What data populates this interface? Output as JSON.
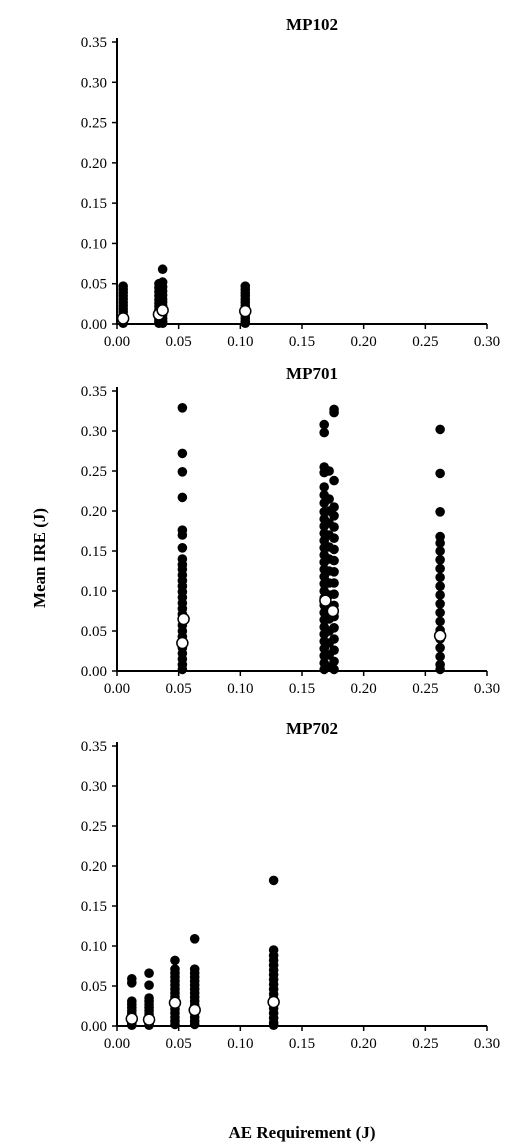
{
  "figure": {
    "ylabel": "Mean IRE (J)",
    "xlabel": "AE Requirement (J)"
  },
  "colors": {
    "individual": "#000000",
    "mean_fill": "#ffffff",
    "mean_stroke": "#000000"
  },
  "chart_data": [
    {
      "type": "scatter",
      "title": "MP102",
      "xlim": [
        0,
        0.3
      ],
      "ylim": [
        0,
        0.35
      ],
      "xticks": [
        "0.00",
        "0.05",
        "0.10",
        "0.15",
        "0.20",
        "0.25",
        "0.30"
      ],
      "yticks": [
        "0.00",
        "0.05",
        "0.10",
        "0.15",
        "0.20",
        "0.25",
        "0.30",
        "0.35"
      ],
      "series": [
        {
          "role": "individual",
          "points": [
            [
              0.005,
              0.047
            ],
            [
              0.005,
              0.043
            ],
            [
              0.005,
              0.039
            ],
            [
              0.005,
              0.035
            ],
            [
              0.005,
              0.031
            ],
            [
              0.005,
              0.027
            ],
            [
              0.005,
              0.023
            ],
            [
              0.005,
              0.019
            ],
            [
              0.005,
              0.015
            ],
            [
              0.005,
              0.011
            ],
            [
              0.005,
              0.007
            ],
            [
              0.005,
              0.004
            ],
            [
              0.005,
              0.001
            ],
            [
              0.034,
              0.05
            ],
            [
              0.034,
              0.045
            ],
            [
              0.034,
              0.04
            ],
            [
              0.034,
              0.035
            ],
            [
              0.034,
              0.03
            ],
            [
              0.034,
              0.026
            ],
            [
              0.034,
              0.022
            ],
            [
              0.034,
              0.018
            ],
            [
              0.034,
              0.014
            ],
            [
              0.034,
              0.01
            ],
            [
              0.034,
              0.006
            ],
            [
              0.034,
              0.003
            ],
            [
              0.034,
              0.001
            ],
            [
              0.037,
              0.068
            ],
            [
              0.037,
              0.052
            ],
            [
              0.037,
              0.046
            ],
            [
              0.037,
              0.041
            ],
            [
              0.037,
              0.036
            ],
            [
              0.037,
              0.031
            ],
            [
              0.037,
              0.027
            ],
            [
              0.037,
              0.023
            ],
            [
              0.037,
              0.019
            ],
            [
              0.037,
              0.015
            ],
            [
              0.037,
              0.011
            ],
            [
              0.037,
              0.007
            ],
            [
              0.037,
              0.003
            ],
            [
              0.037,
              0.001
            ],
            [
              0.104,
              0.047
            ],
            [
              0.104,
              0.043
            ],
            [
              0.104,
              0.039
            ],
            [
              0.104,
              0.035
            ],
            [
              0.104,
              0.031
            ],
            [
              0.104,
              0.027
            ],
            [
              0.104,
              0.023
            ],
            [
              0.104,
              0.019
            ],
            [
              0.104,
              0.015
            ],
            [
              0.104,
              0.011
            ],
            [
              0.104,
              0.007
            ],
            [
              0.104,
              0.003
            ],
            [
              0.104,
              0.001
            ]
          ]
        },
        {
          "role": "mean",
          "points": [
            [
              0.005,
              0.007
            ],
            [
              0.034,
              0.012
            ],
            [
              0.037,
              0.017
            ],
            [
              0.104,
              0.016
            ]
          ]
        }
      ]
    },
    {
      "type": "scatter",
      "title": "MP701",
      "xlim": [
        0,
        0.3
      ],
      "ylim": [
        0,
        0.35
      ],
      "xticks": [
        "0.00",
        "0.05",
        "0.10",
        "0.15",
        "0.20",
        "0.25",
        "0.30"
      ],
      "yticks": [
        "0.00",
        "0.05",
        "0.10",
        "0.15",
        "0.20",
        "0.25",
        "0.30",
        "0.35"
      ],
      "series": [
        {
          "role": "individual",
          "points": [
            [
              0.053,
              0.329
            ],
            [
              0.053,
              0.272
            ],
            [
              0.053,
              0.249
            ],
            [
              0.053,
              0.217
            ],
            [
              0.053,
              0.176
            ],
            [
              0.053,
              0.17
            ],
            [
              0.053,
              0.154
            ],
            [
              0.053,
              0.14
            ],
            [
              0.053,
              0.133
            ],
            [
              0.053,
              0.127
            ],
            [
              0.053,
              0.12
            ],
            [
              0.053,
              0.113
            ],
            [
              0.053,
              0.106
            ],
            [
              0.053,
              0.099
            ],
            [
              0.053,
              0.092
            ],
            [
              0.053,
              0.085
            ],
            [
              0.053,
              0.078
            ],
            [
              0.053,
              0.071
            ],
            [
              0.053,
              0.064
            ],
            [
              0.053,
              0.057
            ],
            [
              0.053,
              0.05
            ],
            [
              0.053,
              0.043
            ],
            [
              0.053,
              0.036
            ],
            [
              0.053,
              0.029
            ],
            [
              0.053,
              0.022
            ],
            [
              0.053,
              0.015
            ],
            [
              0.053,
              0.008
            ],
            [
              0.053,
              0.002
            ],
            [
              0.168,
              0.308
            ],
            [
              0.168,
              0.298
            ],
            [
              0.168,
              0.255
            ],
            [
              0.168,
              0.248
            ],
            [
              0.168,
              0.23
            ],
            [
              0.168,
              0.22
            ],
            [
              0.168,
              0.21
            ],
            [
              0.168,
              0.199
            ],
            [
              0.168,
              0.19
            ],
            [
              0.168,
              0.181
            ],
            [
              0.168,
              0.172
            ],
            [
              0.168,
              0.163
            ],
            [
              0.168,
              0.154
            ],
            [
              0.168,
              0.145
            ],
            [
              0.168,
              0.136
            ],
            [
              0.168,
              0.127
            ],
            [
              0.168,
              0.118
            ],
            [
              0.168,
              0.109
            ],
            [
              0.168,
              0.1
            ],
            [
              0.168,
              0.091
            ],
            [
              0.168,
              0.082
            ],
            [
              0.168,
              0.073
            ],
            [
              0.168,
              0.064
            ],
            [
              0.168,
              0.055
            ],
            [
              0.168,
              0.046
            ],
            [
              0.168,
              0.037
            ],
            [
              0.168,
              0.028
            ],
            [
              0.168,
              0.019
            ],
            [
              0.168,
              0.01
            ],
            [
              0.168,
              0.002
            ],
            [
              0.172,
              0.25
            ],
            [
              0.172,
              0.215
            ],
            [
              0.172,
              0.2
            ],
            [
              0.172,
              0.185
            ],
            [
              0.172,
              0.17
            ],
            [
              0.172,
              0.155
            ],
            [
              0.172,
              0.14
            ],
            [
              0.172,
              0.125
            ],
            [
              0.172,
              0.11
            ],
            [
              0.172,
              0.095
            ],
            [
              0.172,
              0.08
            ],
            [
              0.172,
              0.065
            ],
            [
              0.172,
              0.05
            ],
            [
              0.172,
              0.035
            ],
            [
              0.172,
              0.02
            ],
            [
              0.172,
              0.005
            ],
            [
              0.176,
              0.327
            ],
            [
              0.176,
              0.323
            ],
            [
              0.176,
              0.238
            ],
            [
              0.176,
              0.205
            ],
            [
              0.176,
              0.194
            ],
            [
              0.176,
              0.18
            ],
            [
              0.176,
              0.166
            ],
            [
              0.176,
              0.152
            ],
            [
              0.176,
              0.138
            ],
            [
              0.176,
              0.124
            ],
            [
              0.176,
              0.11
            ],
            [
              0.176,
              0.096
            ],
            [
              0.176,
              0.082
            ],
            [
              0.176,
              0.068
            ],
            [
              0.176,
              0.054
            ],
            [
              0.176,
              0.04
            ],
            [
              0.176,
              0.026
            ],
            [
              0.176,
              0.012
            ],
            [
              0.176,
              0.002
            ],
            [
              0.262,
              0.302
            ],
            [
              0.262,
              0.247
            ],
            [
              0.262,
              0.199
            ],
            [
              0.262,
              0.168
            ],
            [
              0.262,
              0.16
            ],
            [
              0.262,
              0.15
            ],
            [
              0.262,
              0.139
            ],
            [
              0.262,
              0.128
            ],
            [
              0.262,
              0.117
            ],
            [
              0.262,
              0.106
            ],
            [
              0.262,
              0.095
            ],
            [
              0.262,
              0.084
            ],
            [
              0.262,
              0.073
            ],
            [
              0.262,
              0.062
            ],
            [
              0.262,
              0.051
            ],
            [
              0.262,
              0.04
            ],
            [
              0.262,
              0.029
            ],
            [
              0.262,
              0.018
            ],
            [
              0.262,
              0.008
            ],
            [
              0.262,
              0.002
            ]
          ]
        },
        {
          "role": "mean",
          "points": [
            [
              0.053,
              0.035
            ],
            [
              0.054,
              0.065
            ],
            [
              0.169,
              0.088
            ],
            [
              0.175,
              0.075
            ],
            [
              0.262,
              0.044
            ]
          ]
        }
      ]
    },
    {
      "type": "scatter",
      "title": "MP702",
      "xlim": [
        0,
        0.3
      ],
      "ylim": [
        0,
        0.35
      ],
      "xticks": [
        "0.00",
        "0.05",
        "0.10",
        "0.15",
        "0.20",
        "0.25",
        "0.30"
      ],
      "yticks": [
        "0.00",
        "0.05",
        "0.10",
        "0.15",
        "0.20",
        "0.25",
        "0.30",
        "0.35"
      ],
      "series": [
        {
          "role": "individual",
          "points": [
            [
              0.012,
              0.059
            ],
            [
              0.012,
              0.054
            ],
            [
              0.012,
              0.031
            ],
            [
              0.012,
              0.027
            ],
            [
              0.012,
              0.023
            ],
            [
              0.012,
              0.019
            ],
            [
              0.012,
              0.015
            ],
            [
              0.012,
              0.011
            ],
            [
              0.012,
              0.007
            ],
            [
              0.012,
              0.003
            ],
            [
              0.012,
              0.001
            ],
            [
              0.026,
              0.066
            ],
            [
              0.026,
              0.051
            ],
            [
              0.026,
              0.035
            ],
            [
              0.026,
              0.031
            ],
            [
              0.026,
              0.027
            ],
            [
              0.026,
              0.023
            ],
            [
              0.026,
              0.019
            ],
            [
              0.026,
              0.015
            ],
            [
              0.026,
              0.011
            ],
            [
              0.026,
              0.007
            ],
            [
              0.026,
              0.003
            ],
            [
              0.026,
              0.001
            ],
            [
              0.047,
              0.082
            ],
            [
              0.047,
              0.071
            ],
            [
              0.047,
              0.066
            ],
            [
              0.047,
              0.061
            ],
            [
              0.047,
              0.056
            ],
            [
              0.047,
              0.051
            ],
            [
              0.047,
              0.046
            ],
            [
              0.047,
              0.041
            ],
            [
              0.047,
              0.036
            ],
            [
              0.047,
              0.031
            ],
            [
              0.047,
              0.026
            ],
            [
              0.047,
              0.021
            ],
            [
              0.047,
              0.016
            ],
            [
              0.047,
              0.011
            ],
            [
              0.047,
              0.006
            ],
            [
              0.047,
              0.002
            ],
            [
              0.063,
              0.109
            ],
            [
              0.063,
              0.071
            ],
            [
              0.063,
              0.066
            ],
            [
              0.063,
              0.061
            ],
            [
              0.063,
              0.056
            ],
            [
              0.063,
              0.051
            ],
            [
              0.063,
              0.046
            ],
            [
              0.063,
              0.041
            ],
            [
              0.063,
              0.036
            ],
            [
              0.063,
              0.031
            ],
            [
              0.063,
              0.026
            ],
            [
              0.063,
              0.021
            ],
            [
              0.063,
              0.016
            ],
            [
              0.063,
              0.011
            ],
            [
              0.063,
              0.006
            ],
            [
              0.063,
              0.002
            ],
            [
              0.127,
              0.182
            ],
            [
              0.127,
              0.095
            ],
            [
              0.127,
              0.088
            ],
            [
              0.127,
              0.082
            ],
            [
              0.127,
              0.076
            ],
            [
              0.127,
              0.07
            ],
            [
              0.127,
              0.064
            ],
            [
              0.127,
              0.058
            ],
            [
              0.127,
              0.052
            ],
            [
              0.127,
              0.046
            ],
            [
              0.127,
              0.04
            ],
            [
              0.127,
              0.034
            ],
            [
              0.127,
              0.028
            ],
            [
              0.127,
              0.022
            ],
            [
              0.127,
              0.016
            ],
            [
              0.127,
              0.01
            ],
            [
              0.127,
              0.004
            ],
            [
              0.127,
              0.001
            ]
          ]
        },
        {
          "role": "mean",
          "points": [
            [
              0.012,
              0.009
            ],
            [
              0.026,
              0.008
            ],
            [
              0.047,
              0.029
            ],
            [
              0.063,
              0.02
            ],
            [
              0.127,
              0.03
            ]
          ]
        }
      ]
    }
  ]
}
